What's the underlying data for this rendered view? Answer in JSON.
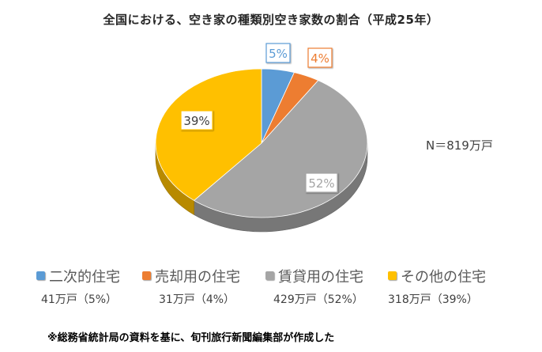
{
  "chart_data": {
    "type": "pie",
    "title": "全国における、空き家の種類別空き家数の割合（平成25年）",
    "note": "N＝819万戸",
    "source": "※総務省統計局の資料を基に、旬刊旅行新聞編集部が作成した",
    "categories": [
      "二次的住宅",
      "売却用の住宅",
      "賃貸用の住宅",
      "その他の住宅"
    ],
    "values": [
      5,
      4,
      52,
      39
    ],
    "data_labels": [
      "5%",
      "4%",
      "52%",
      "39%"
    ],
    "counts": [
      "41万戸（5%）",
      "31万戸（4%）",
      "429万戸（52%）",
      "318万戸（39%）"
    ],
    "colors": [
      "#5B9BD5",
      "#ED7D31",
      "#A5A5A5",
      "#FFC000"
    ],
    "style": "3d-pie",
    "legend_position": "bottom"
  }
}
